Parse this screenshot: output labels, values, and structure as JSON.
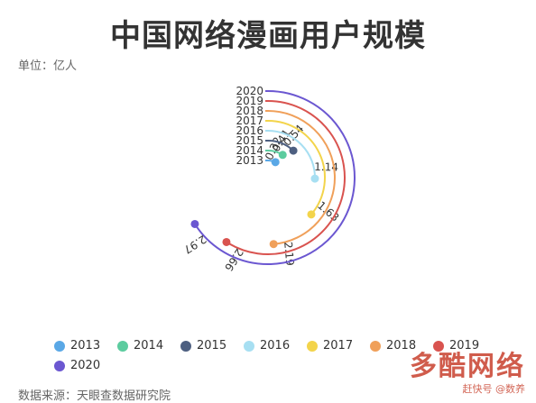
{
  "title": "中国网络漫画用户规模",
  "unit_label": "单位：亿人",
  "source": "数据来源：天眼查数据研究院",
  "watermark": {
    "logo": "多酷网络",
    "sub": "赶快号 @数养"
  },
  "colors": {
    "2013": "#5aa8e6",
    "2014": "#5ccc9f",
    "2015": "#4d5f80",
    "2016": "#a7dff2",
    "2017": "#f3d44b",
    "2018": "#f0a05a",
    "2019": "#d9534f",
    "2020": "#6b57d1"
  },
  "chart_data": {
    "type": "polar-bar",
    "title": "中国网络漫画用户规模",
    "unit": "亿人",
    "max_value": 4.5,
    "categories": [
      "2013",
      "2014",
      "2015",
      "2016",
      "2017",
      "2018",
      "2019",
      "2020"
    ],
    "values": [
      0.32,
      0.41,
      0.54,
      1.14,
      1.63,
      2.19,
      2.66,
      2.97
    ],
    "value_labels": [
      "0.32",
      "0.41",
      "0.54",
      "1.14",
      "1.63",
      "2.19",
      "2.66",
      "2.97"
    ],
    "legend_position": "bottom"
  }
}
